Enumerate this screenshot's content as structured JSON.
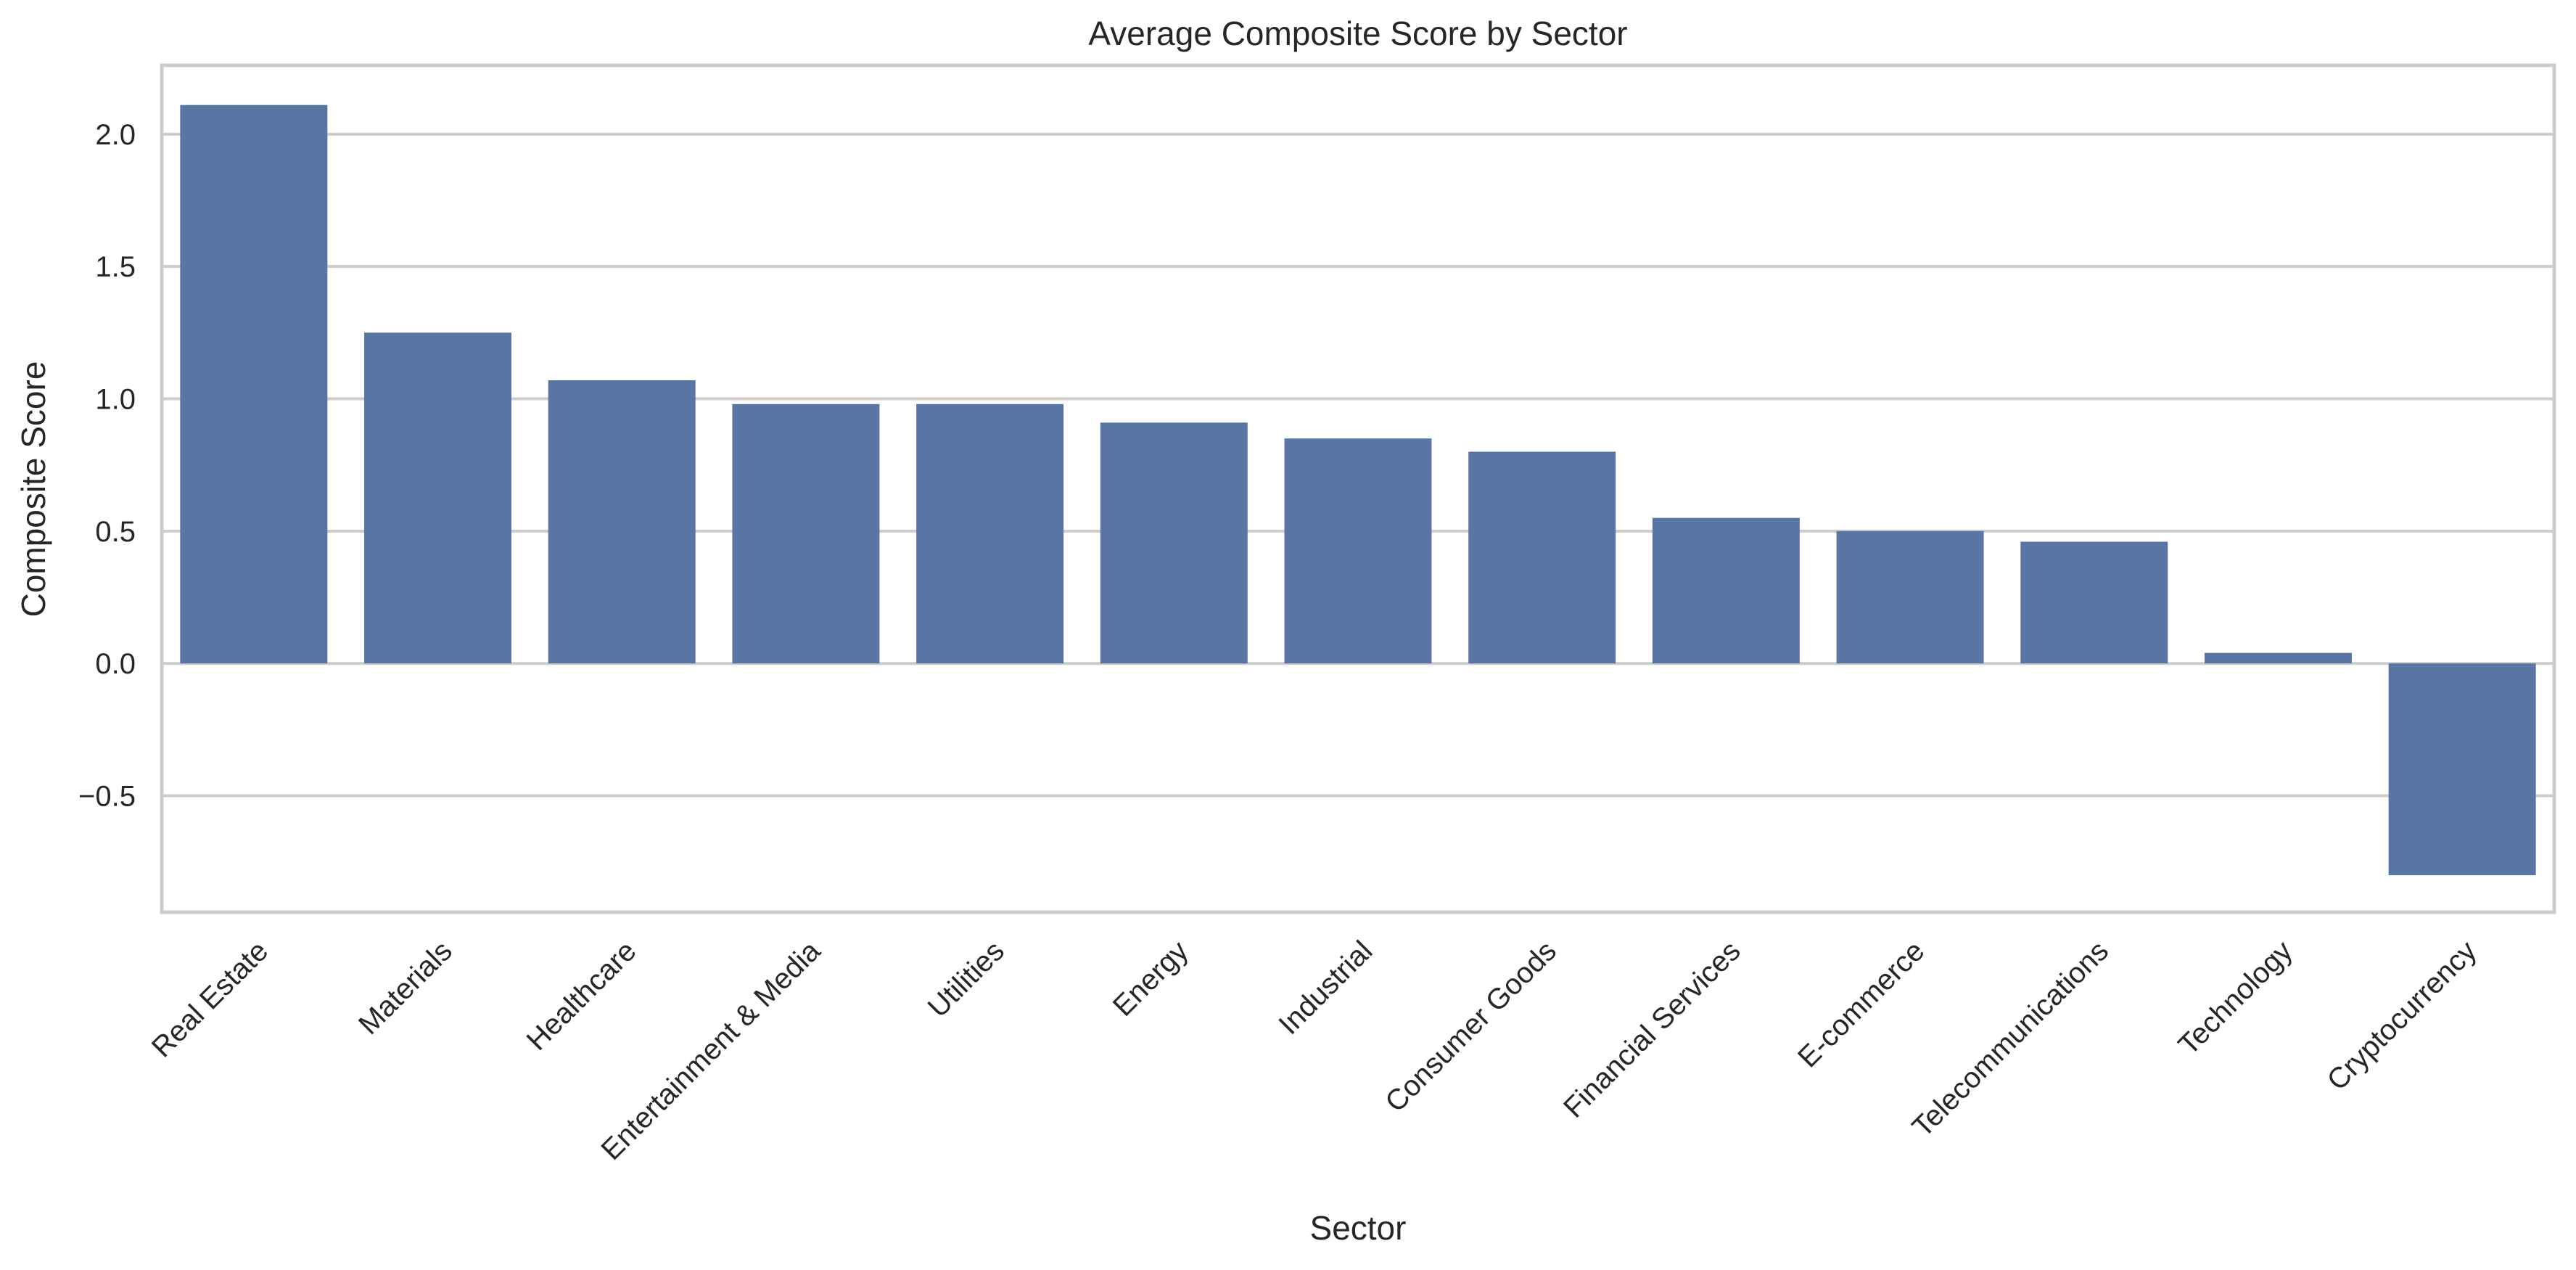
{
  "chart_data": {
    "type": "bar",
    "title": "Average Composite Score by Sector",
    "xlabel": "Sector",
    "ylabel": "Composite Score",
    "categories": [
      "Real Estate",
      "Materials",
      "Healthcare",
      "Entertainment & Media",
      "Utilities",
      "Energy",
      "Industrial",
      "Consumer Goods",
      "Financial Services",
      "E-commerce",
      "Telecommunications",
      "Technology",
      "Cryptocurrency"
    ],
    "values": [
      2.11,
      1.25,
      1.07,
      0.98,
      0.98,
      0.91,
      0.85,
      0.8,
      0.55,
      0.5,
      0.46,
      0.04,
      -0.8
    ],
    "ylim": [
      -0.94,
      2.26
    ],
    "yticks": [
      -0.5,
      0.0,
      0.5,
      1.0,
      1.5,
      2.0
    ],
    "ytick_labels": [
      "−0.5",
      "0.0",
      "0.5",
      "1.0",
      "1.5",
      "2.0"
    ],
    "grid": true,
    "bar_color": "#5975a4"
  }
}
